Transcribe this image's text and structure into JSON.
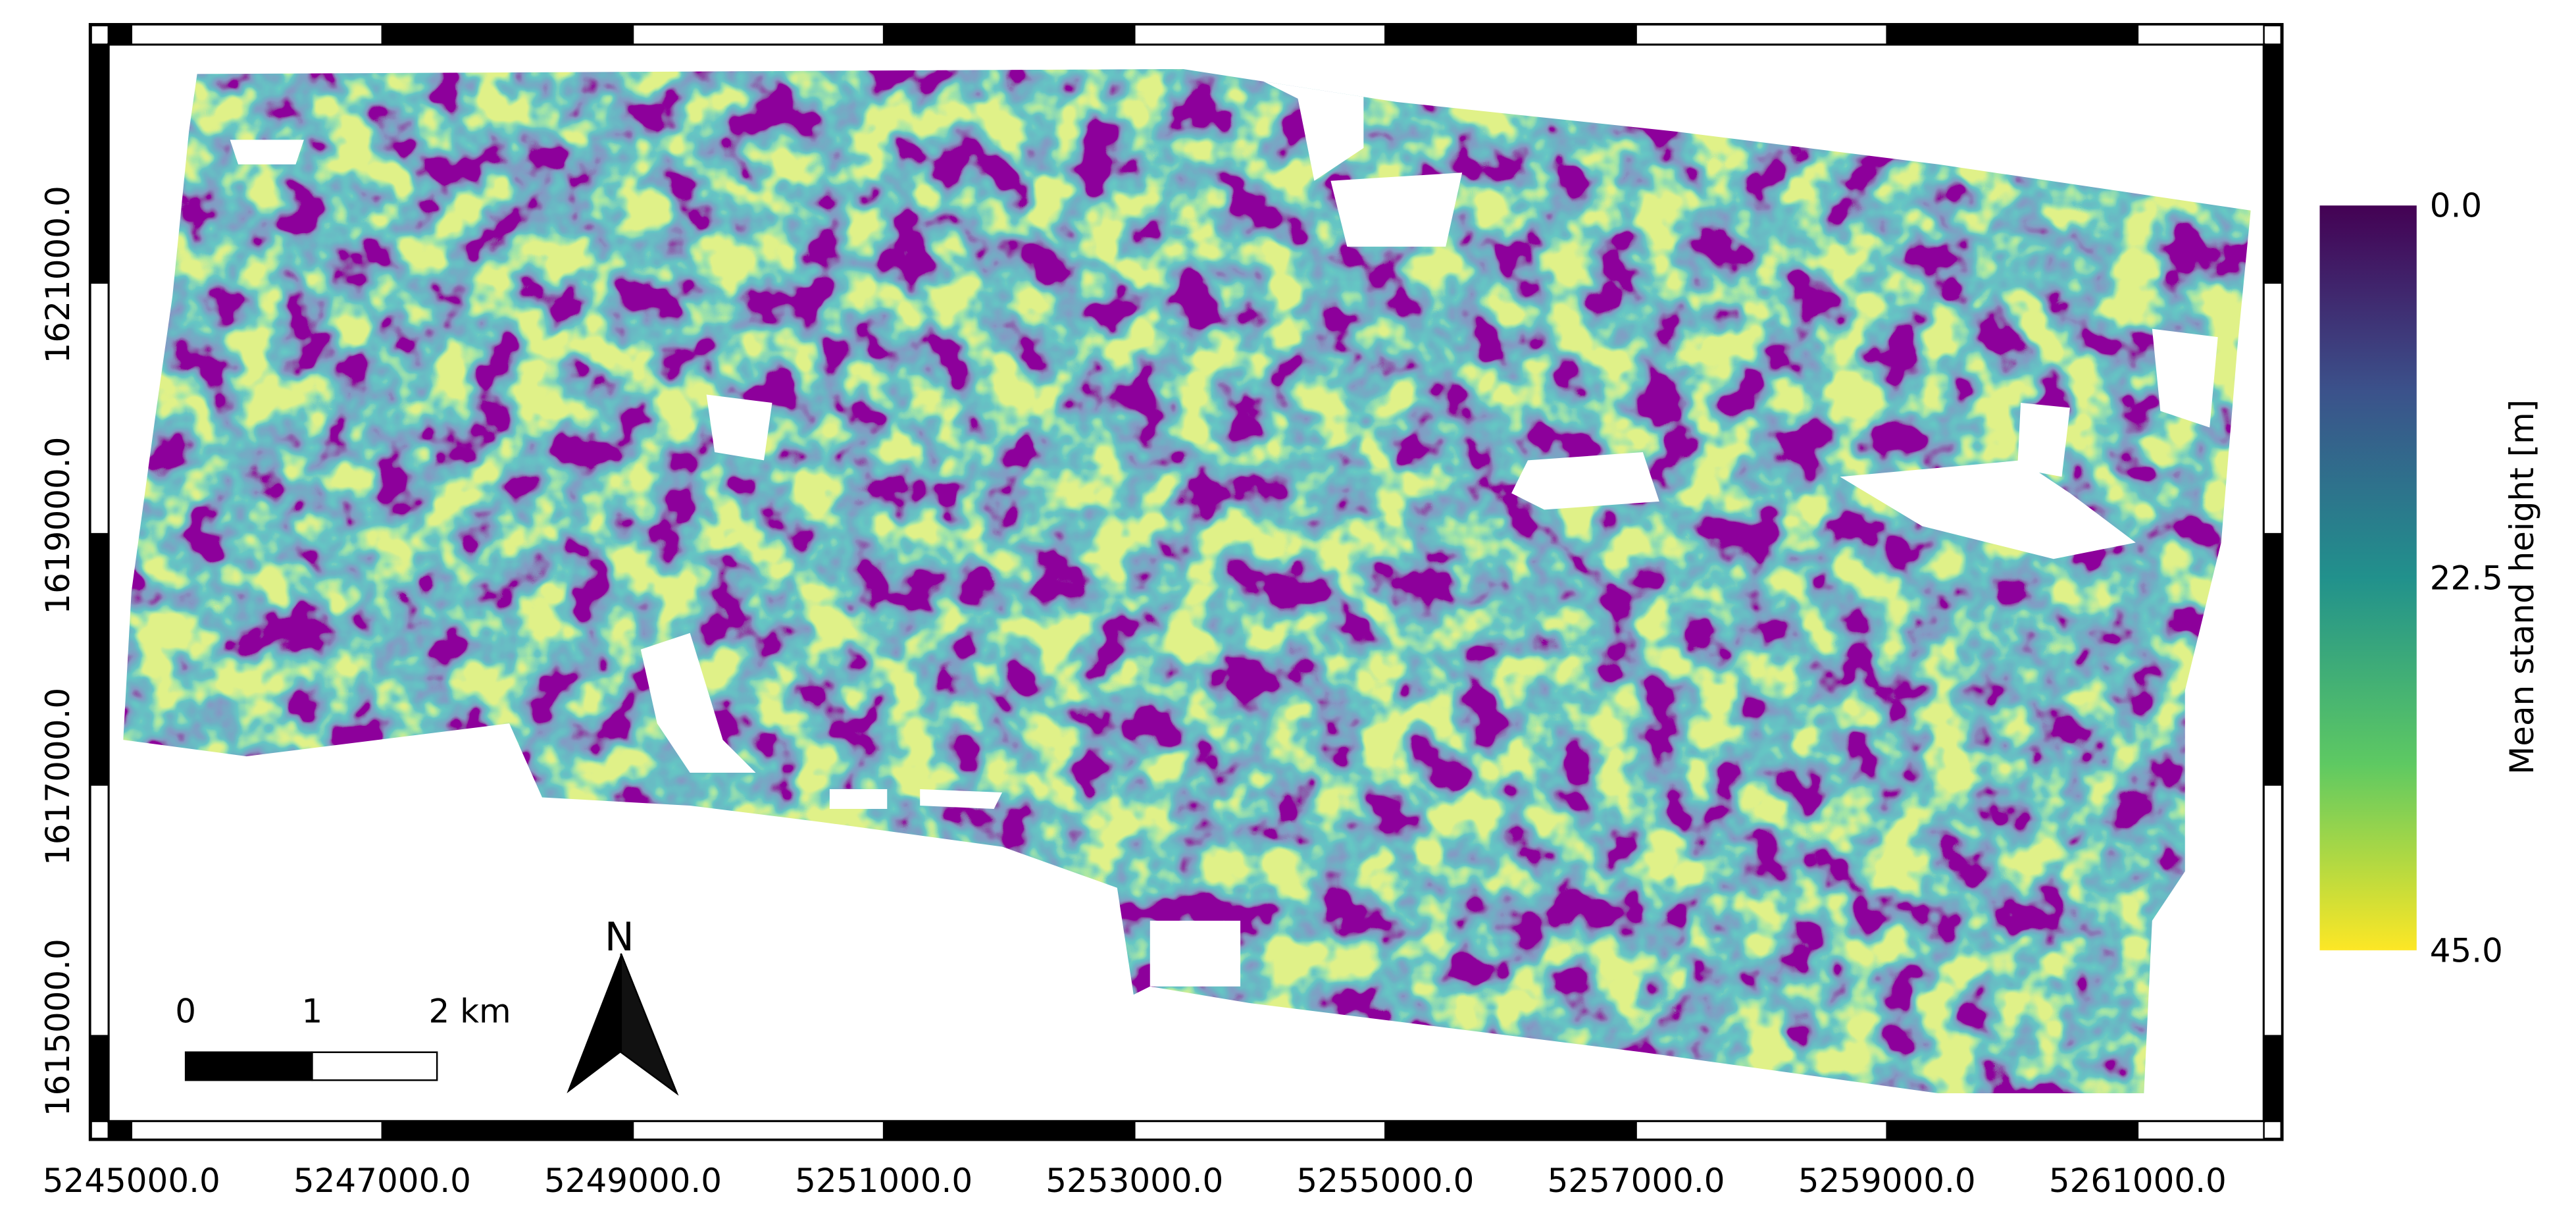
{
  "map": {
    "x_ticks": [
      "5245000.0",
      "5247000.0",
      "5249000.0",
      "5251000.0",
      "5253000.0",
      "5255000.0",
      "5257000.0",
      "5259000.0",
      "5261000.0"
    ],
    "y_ticks": [
      "1615000.0",
      "1617000.0",
      "1619000.0",
      "1621000.0"
    ],
    "legend": {
      "title": "Mean stand height [m]",
      "ticks": [
        "0.0",
        "22.5",
        "45.0"
      ]
    },
    "scale_bar": {
      "labels": [
        "0",
        "1",
        "2 km"
      ]
    },
    "north_arrow": "N"
  }
}
